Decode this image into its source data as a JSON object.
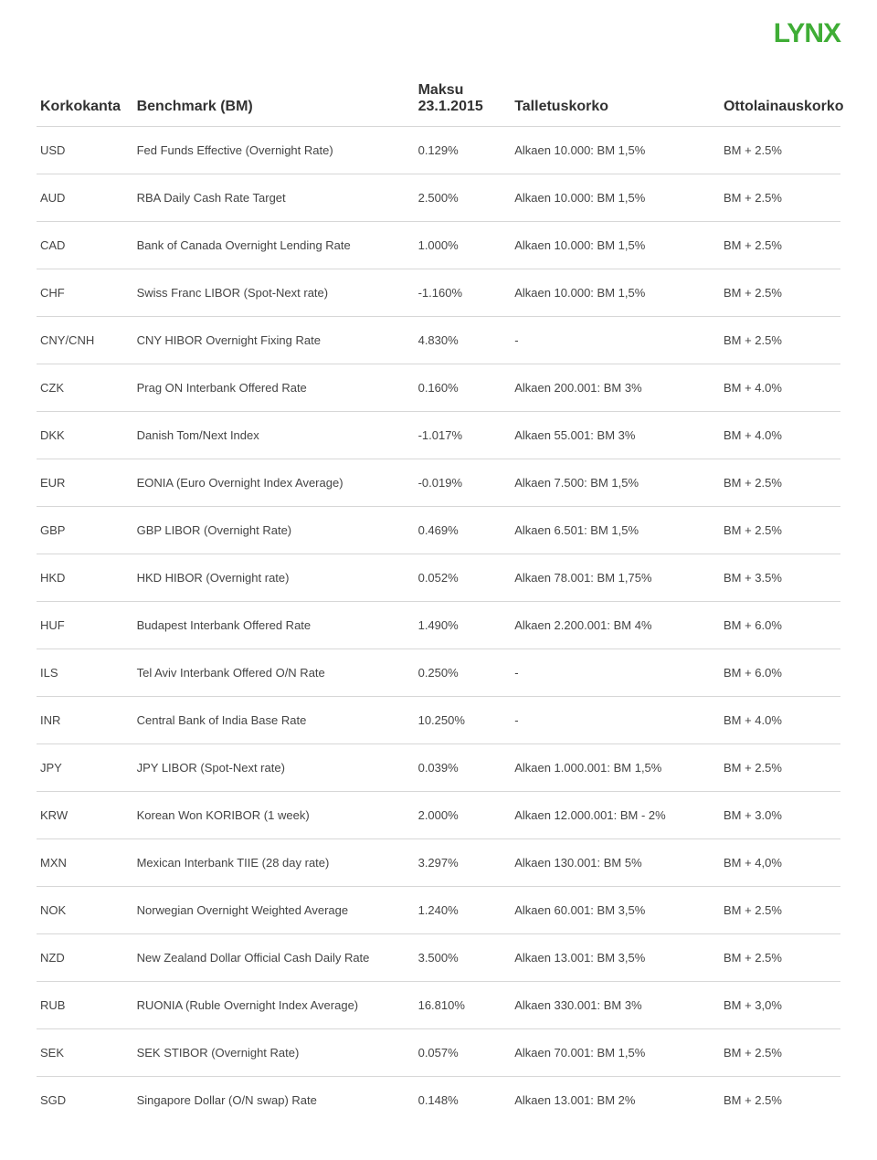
{
  "logo_text": "LYNX",
  "columns": {
    "korkokanta": "Korkokanta",
    "benchmark": "Benchmark (BM)",
    "maksu_line1": "Maksu",
    "maksu_line2": "23.1.2015",
    "talletuskorko": "Talletuskorko",
    "ottolainauskorko": "Ottolainauskorko"
  },
  "rows": [
    {
      "c": "USD",
      "b": "Fed Funds Effective (Overnight Rate)",
      "r": "0.129%",
      "t": "Alkaen 10.000: BM 1,5%",
      "o": "BM + 2.5%"
    },
    {
      "c": "AUD",
      "b": "RBA Daily Cash Rate Target",
      "r": "2.500%",
      "t": "Alkaen 10.000: BM 1,5%",
      "o": "BM + 2.5%"
    },
    {
      "c": "CAD",
      "b": "Bank of Canada Overnight Lending Rate",
      "r": "1.000%",
      "t": "Alkaen 10.000: BM 1,5%",
      "o": "BM + 2.5%"
    },
    {
      "c": "CHF",
      "b": "Swiss Franc LIBOR (Spot-Next rate)",
      "r": "-1.160%",
      "t": "Alkaen 10.000: BM 1,5%",
      "o": "BM + 2.5%"
    },
    {
      "c": "CNY/CNH",
      "b": "CNY HIBOR Overnight Fixing Rate",
      "r": "4.830%",
      "t": "-",
      "o": "BM + 2.5%"
    },
    {
      "c": "CZK",
      "b": "Prag ON Interbank Offered Rate",
      "r": "0.160%",
      "t": "Alkaen 200.001: BM 3%",
      "o": "BM + 4.0%"
    },
    {
      "c": "DKK",
      "b": "Danish Tom/Next Index",
      "r": "-1.017%",
      "t": "Alkaen 55.001: BM 3%",
      "o": "BM + 4.0%"
    },
    {
      "c": "EUR",
      "b": "EONIA (Euro Overnight Index Average)",
      "r": "-0.019%",
      "t": "Alkaen 7.500: BM 1,5%",
      "o": "BM + 2.5%"
    },
    {
      "c": "GBP",
      "b": "GBP LIBOR (Overnight Rate)",
      "r": "0.469%",
      "t": "Alkaen 6.501: BM 1,5%",
      "o": "BM + 2.5%"
    },
    {
      "c": "HKD",
      "b": "HKD HIBOR (Overnight rate)",
      "r": "0.052%",
      "t": "Alkaen 78.001: BM 1,75%",
      "o": "BM + 3.5%"
    },
    {
      "c": "HUF",
      "b": "Budapest Interbank Offered Rate",
      "r": "1.490%",
      "t": "Alkaen 2.200.001: BM 4%",
      "o": "BM + 6.0%"
    },
    {
      "c": "ILS",
      "b": "Tel Aviv Interbank Offered O/N Rate",
      "r": "0.250%",
      "t": "-",
      "o": "BM + 6.0%"
    },
    {
      "c": "INR",
      "b": "Central Bank of India Base Rate",
      "r": "10.250%",
      "t": "-",
      "o": "BM + 4.0%"
    },
    {
      "c": "JPY",
      "b": "JPY LIBOR (Spot-Next rate)",
      "r": "0.039%",
      "t": "Alkaen 1.000.001: BM 1,5%",
      "o": "BM + 2.5%"
    },
    {
      "c": "KRW",
      "b": "Korean Won KORIBOR (1 week)",
      "r": "2.000%",
      "t": "Alkaen 12.000.001: BM - 2%",
      "o": "BM + 3.0%"
    },
    {
      "c": "MXN",
      "b": "Mexican Interbank TIIE (28 day rate)",
      "r": "3.297%",
      "t": "Alkaen 130.001: BM 5%",
      "o": "BM + 4,0%"
    },
    {
      "c": "NOK",
      "b": "Norwegian Overnight Weighted Average",
      "r": "1.240%",
      "t": "Alkaen 60.001: BM 3,5%",
      "o": "BM + 2.5%"
    },
    {
      "c": "NZD",
      "b": "New Zealand Dollar Official Cash Daily Rate",
      "r": "3.500%",
      "t": "Alkaen 13.001: BM 3,5%",
      "o": "BM + 2.5%"
    },
    {
      "c": "RUB",
      "b": "RUONIA (Ruble Overnight Index Average)",
      "r": "16.810%",
      "t": "Alkaen 330.001: BM 3%",
      "o": "BM + 3,0%"
    },
    {
      "c": "SEK",
      "b": "SEK STIBOR (Overnight Rate)",
      "r": "0.057%",
      "t": "Alkaen 70.001: BM 1,5%",
      "o": "BM + 2.5%"
    },
    {
      "c": "SGD",
      "b": "Singapore Dollar (O/N swap) Rate",
      "r": "0.148%",
      "t": "Alkaen 13.001: BM 2%",
      "o": "BM + 2.5%"
    }
  ]
}
